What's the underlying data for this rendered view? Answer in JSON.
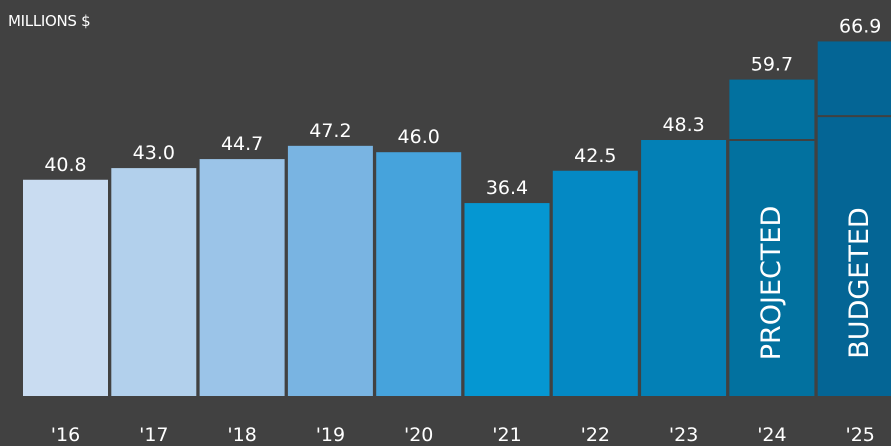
{
  "chart_data": {
    "type": "bar",
    "ylabel": "MILLIONS $",
    "xlabel": "",
    "title": "",
    "categories": [
      "'16",
      "'17",
      "'18",
      "'19",
      "'20",
      "'21",
      "'22",
      "'23",
      "'24",
      "'25"
    ],
    "values": [
      40.8,
      43.0,
      44.7,
      47.2,
      46.0,
      36.4,
      42.5,
      48.3,
      59.7,
      66.9
    ],
    "value_labels": [
      "40.8",
      "43.0",
      "44.7",
      "47.2",
      "46.0",
      "36.4",
      "42.5",
      "48.3",
      "59.7",
      "66.9"
    ],
    "colors": [
      "#c9dcf1",
      "#b2d0ec",
      "#9bc4e8",
      "#79b4e2",
      "#46a3dc",
      "#0597d2",
      "#0489c4",
      "#0380b6",
      "#02719f",
      "#046595"
    ],
    "background": "#414141",
    "projection_break": {
      "24": 48.3,
      "25": 52.8
    },
    "bar_annotations": [
      {
        "category": "'24",
        "text": "PROJECTED"
      },
      {
        "category": "'25",
        "text": "BUDGETED"
      }
    ],
    "grid": false,
    "legend": "none"
  }
}
